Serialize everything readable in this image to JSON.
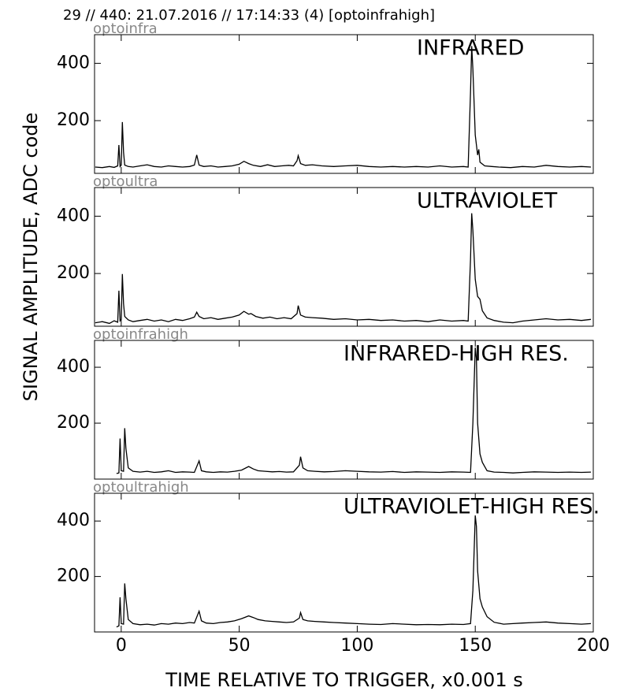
{
  "title": "29 // 440:   21.07.2016 // 17:14:33 (4)  [optoinfrahigh]",
  "ylabel": "SIGNAL AMPLITUDE,  ADC code",
  "xlabel": "TIME RELATIVE TO TRIGGER,   x0.001 s",
  "xlim": [
    -11.3,
    200
  ],
  "xticks": [
    0,
    50,
    100,
    150,
    200
  ],
  "chart_data": [
    {
      "type": "line",
      "label": "optoinfra",
      "annotation": "INFRARED",
      "color": "#000000",
      "ylim": [
        16,
        500
      ],
      "yticks": [
        200,
        400
      ],
      "x": [
        -11,
        -8,
        -5,
        -3,
        -1.5,
        -1,
        -0.5,
        0,
        0.5,
        1,
        1.5,
        3,
        5,
        8,
        11,
        14,
        17,
        20,
        23,
        26,
        29,
        31,
        32,
        33,
        35,
        38,
        41,
        44,
        47,
        50,
        52,
        54,
        56,
        59,
        62,
        65,
        68,
        71,
        73,
        74.5,
        75,
        76,
        78,
        81,
        85,
        90,
        95,
        100,
        105,
        110,
        115,
        120,
        125,
        130,
        135,
        140,
        145,
        147,
        148,
        148.5,
        149,
        150,
        151,
        151.5,
        152,
        154,
        157,
        160,
        165,
        170,
        175,
        180,
        185,
        190,
        195,
        199
      ],
      "values": [
        38,
        36,
        40,
        37,
        42,
        115,
        40,
        45,
        195,
        90,
        45,
        40,
        38,
        42,
        46,
        40,
        38,
        42,
        40,
        38,
        40,
        45,
        80,
        45,
        40,
        42,
        38,
        40,
        42,
        48,
        58,
        50,
        44,
        40,
        46,
        40,
        42,
        44,
        42,
        60,
        78,
        50,
        44,
        46,
        42,
        40,
        42,
        44,
        40,
        38,
        40,
        38,
        40,
        38,
        42,
        38,
        40,
        38,
        300,
        460,
        380,
        150,
        80,
        100,
        55,
        42,
        40,
        38,
        36,
        40,
        38,
        44,
        40,
        38,
        40,
        38
      ]
    },
    {
      "type": "line",
      "label": "optoultra",
      "annotation": "ULTRAVIOLET",
      "color": "#000000",
      "ylim": [
        16,
        500
      ],
      "yticks": [
        200,
        400
      ],
      "x": [
        -11,
        -8,
        -5,
        -3,
        -1.5,
        -1,
        -0.5,
        0,
        0.5,
        1,
        1.5,
        3,
        5,
        8,
        11,
        14,
        17,
        20,
        23,
        26,
        29,
        31,
        32,
        33,
        35,
        38,
        41,
        44,
        47,
        50,
        52,
        54,
        55,
        57,
        60,
        63,
        66,
        69,
        72,
        74.5,
        75,
        76,
        78,
        81,
        85,
        90,
        95,
        100,
        105,
        110,
        115,
        120,
        125,
        130,
        135,
        140,
        145,
        147,
        148,
        148.5,
        149,
        150,
        151,
        152,
        153,
        155,
        158,
        162,
        166,
        170,
        175,
        180,
        185,
        190,
        195,
        199
      ],
      "values": [
        28,
        32,
        26,
        35,
        30,
        140,
        35,
        40,
        198,
        95,
        50,
        38,
        32,
        36,
        40,
        34,
        38,
        32,
        40,
        36,
        42,
        48,
        65,
        50,
        42,
        46,
        40,
        44,
        48,
        55,
        68,
        58,
        60,
        50,
        44,
        48,
        42,
        46,
        42,
        60,
        88,
        55,
        48,
        46,
        44,
        40,
        42,
        38,
        40,
        36,
        38,
        34,
        36,
        32,
        38,
        34,
        36,
        34,
        250,
        410,
        350,
        180,
        120,
        110,
        70,
        45,
        36,
        30,
        28,
        34,
        38,
        42,
        38,
        40,
        36,
        40
      ]
    },
    {
      "type": "line",
      "label": "optoinfrahigh",
      "annotation": "INFRARED-HIGH RES.",
      "color": "#000000",
      "ylim": [
        0,
        496
      ],
      "yticks": [
        200,
        400
      ],
      "x": [
        -2,
        -1,
        -0.5,
        0,
        1,
        1.5,
        2,
        3,
        5,
        8,
        11,
        14,
        17,
        20,
        23,
        26,
        29,
        31,
        33,
        34,
        36,
        39,
        42,
        45,
        48,
        51,
        54,
        56,
        58,
        61,
        64,
        67,
        70,
        73,
        75.5,
        76,
        77,
        79,
        82,
        86,
        90,
        95,
        100,
        105,
        110,
        115,
        120,
        125,
        130,
        135,
        140,
        145,
        148,
        149,
        150,
        150.5,
        151,
        152,
        153,
        155,
        158,
        162,
        166,
        170,
        175,
        180,
        185,
        190,
        195,
        199
      ],
      "values": [
        20,
        22,
        145,
        30,
        28,
        182,
        110,
        40,
        28,
        25,
        28,
        24,
        26,
        30,
        24,
        26,
        25,
        24,
        65,
        30,
        26,
        24,
        26,
        25,
        28,
        32,
        45,
        36,
        30,
        28,
        26,
        27,
        25,
        26,
        50,
        80,
        40,
        30,
        28,
        26,
        27,
        30,
        28,
        26,
        25,
        27,
        24,
        26,
        25,
        24,
        26,
        25,
        24,
        200,
        470,
        430,
        200,
        90,
        60,
        30,
        25,
        24,
        22,
        24,
        26,
        25,
        24,
        25,
        24,
        25
      ]
    },
    {
      "type": "line",
      "label": "optoultrahigh",
      "annotation": "ULTRAVIOLET-HIGH RES.",
      "color": "#000000",
      "ylim": [
        0,
        500
      ],
      "yticks": [
        200,
        400
      ],
      "x": [
        -2,
        -1,
        -0.5,
        0,
        1,
        1.5,
        2,
        3,
        5,
        8,
        11,
        14,
        17,
        20,
        23,
        26,
        29,
        31,
        33,
        34,
        36,
        39,
        42,
        45,
        48,
        51,
        54,
        56,
        58,
        61,
        64,
        67,
        70,
        73,
        75.5,
        76,
        77,
        79,
        82,
        86,
        90,
        95,
        100,
        105,
        110,
        115,
        120,
        125,
        130,
        135,
        140,
        145,
        148,
        149,
        150,
        150.5,
        151,
        152,
        153,
        155,
        158,
        162,
        166,
        170,
        175,
        180,
        185,
        190,
        195,
        199
      ],
      "values": [
        18,
        22,
        125,
        30,
        28,
        175,
        120,
        45,
        30,
        26,
        28,
        25,
        30,
        28,
        32,
        30,
        34,
        32,
        75,
        40,
        32,
        30,
        34,
        36,
        40,
        48,
        58,
        52,
        45,
        40,
        38,
        36,
        34,
        36,
        50,
        70,
        45,
        40,
        38,
        36,
        34,
        32,
        30,
        28,
        27,
        30,
        28,
        26,
        27,
        26,
        28,
        27,
        30,
        150,
        420,
        380,
        220,
        120,
        90,
        55,
        35,
        28,
        30,
        32,
        34,
        36,
        32,
        30,
        28,
        30
      ]
    }
  ]
}
